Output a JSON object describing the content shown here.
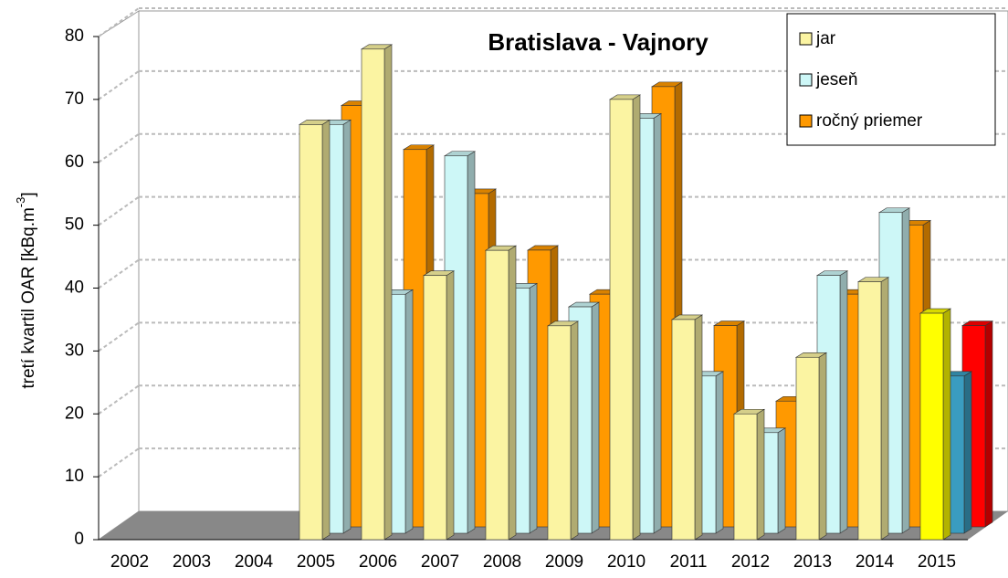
{
  "chart_data": {
    "type": "bar3d",
    "title": "Bratislava - Vajnory",
    "y_label": [
      "tretí kvartil OAR [kBq.m",
      "-3",
      "]"
    ],
    "categories": [
      "2002",
      "2003",
      "2004",
      "2005",
      "2006",
      "2007",
      "2008",
      "2009",
      "2010",
      "2011",
      "2012",
      "2013",
      "2014",
      "2015"
    ],
    "series": [
      {
        "name": "jar",
        "color": "#fbf4a2",
        "last_color": "#ffff00",
        "values": [
          null,
          null,
          null,
          66,
          78,
          42,
          46,
          34,
          70,
          35,
          20,
          29,
          41,
          36
        ]
      },
      {
        "name": "jeseň",
        "color": "#cdf7f7",
        "last_color": "#3a9cc0",
        "values": [
          null,
          null,
          null,
          65,
          38,
          60,
          39,
          36,
          66,
          25,
          16,
          41,
          51,
          25
        ]
      },
      {
        "name": "ročný priemer",
        "color": "#ff9900",
        "last_color": "#ff0000",
        "values": [
          null,
          null,
          null,
          67,
          60,
          53,
          44,
          37,
          70,
          32,
          20,
          37,
          48,
          32
        ]
      }
    ],
    "ylim": [
      0,
      80
    ],
    "yticks": [
      0,
      10,
      20,
      30,
      40,
      50,
      60,
      70,
      80
    ],
    "grid": true,
    "legend": "top-right"
  }
}
